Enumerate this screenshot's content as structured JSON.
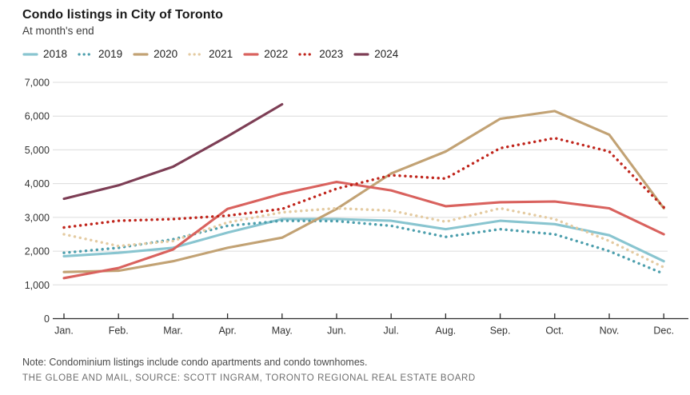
{
  "header": {
    "title": "Condo listings in City of Toronto",
    "subtitle": "At month's end"
  },
  "chart_data": {
    "type": "line",
    "x": [
      "Jan.",
      "Feb.",
      "Mar.",
      "Apr.",
      "May.",
      "Jun.",
      "Jul.",
      "Aug.",
      "Sep.",
      "Oct.",
      "Nov.",
      "Dec."
    ],
    "xlabel": "",
    "ylabel": "",
    "ylim": [
      0,
      7000
    ],
    "yticks": [
      0,
      1000,
      2000,
      3000,
      4000,
      5000,
      6000,
      7000
    ],
    "ytick_labels": [
      "0",
      "1,000",
      "2,000",
      "3,000",
      "4,000",
      "5,000",
      "6,000",
      "7,000"
    ],
    "grid": true,
    "legend_position": "top",
    "grid_color": "#dcdcdc",
    "axis_color": "#2b2b2b",
    "series": [
      {
        "name": "2018",
        "style": "solid",
        "color": "#89c5d0",
        "values": [
          1850,
          1950,
          2100,
          2550,
          2950,
          2950,
          2900,
          2650,
          2900,
          2800,
          2470,
          1700
        ]
      },
      {
        "name": "2019",
        "style": "dotted",
        "color": "#4d9fad",
        "values": [
          1950,
          2100,
          2350,
          2750,
          2900,
          2890,
          2750,
          2420,
          2650,
          2500,
          2000,
          1330
        ]
      },
      {
        "name": "2020",
        "style": "solid",
        "color": "#c2a274",
        "values": [
          1380,
          1420,
          1700,
          2100,
          2400,
          3250,
          4300,
          4950,
          5920,
          6150,
          5450,
          3270
        ]
      },
      {
        "name": "2021",
        "style": "dotted",
        "color": "#e4cba2",
        "values": [
          2500,
          2150,
          2300,
          2850,
          3150,
          3270,
          3200,
          2870,
          3270,
          2950,
          2300,
          1520
        ]
      },
      {
        "name": "2022",
        "style": "solid",
        "color": "#d9625e",
        "values": [
          1200,
          1500,
          2050,
          3250,
          3700,
          4050,
          3800,
          3330,
          3450,
          3470,
          3270,
          2500
        ]
      },
      {
        "name": "2023",
        "style": "dotted",
        "color": "#c0251c",
        "values": [
          2700,
          2900,
          2950,
          3050,
          3250,
          3850,
          4250,
          4150,
          5050,
          5350,
          4950,
          3300
        ]
      },
      {
        "name": "2024",
        "style": "solid",
        "color": "#7d3e55",
        "values": [
          3550,
          3950,
          4500,
          5400,
          6350,
          null,
          null,
          null,
          null,
          null,
          null,
          null
        ]
      }
    ]
  },
  "footer": {
    "note": "Note: Condominium listings include condo apartments and condo townhomes.",
    "source": "THE GLOBE AND MAIL, SOURCE: SCOTT INGRAM, TORONTO REGIONAL REAL ESTATE BOARD"
  }
}
